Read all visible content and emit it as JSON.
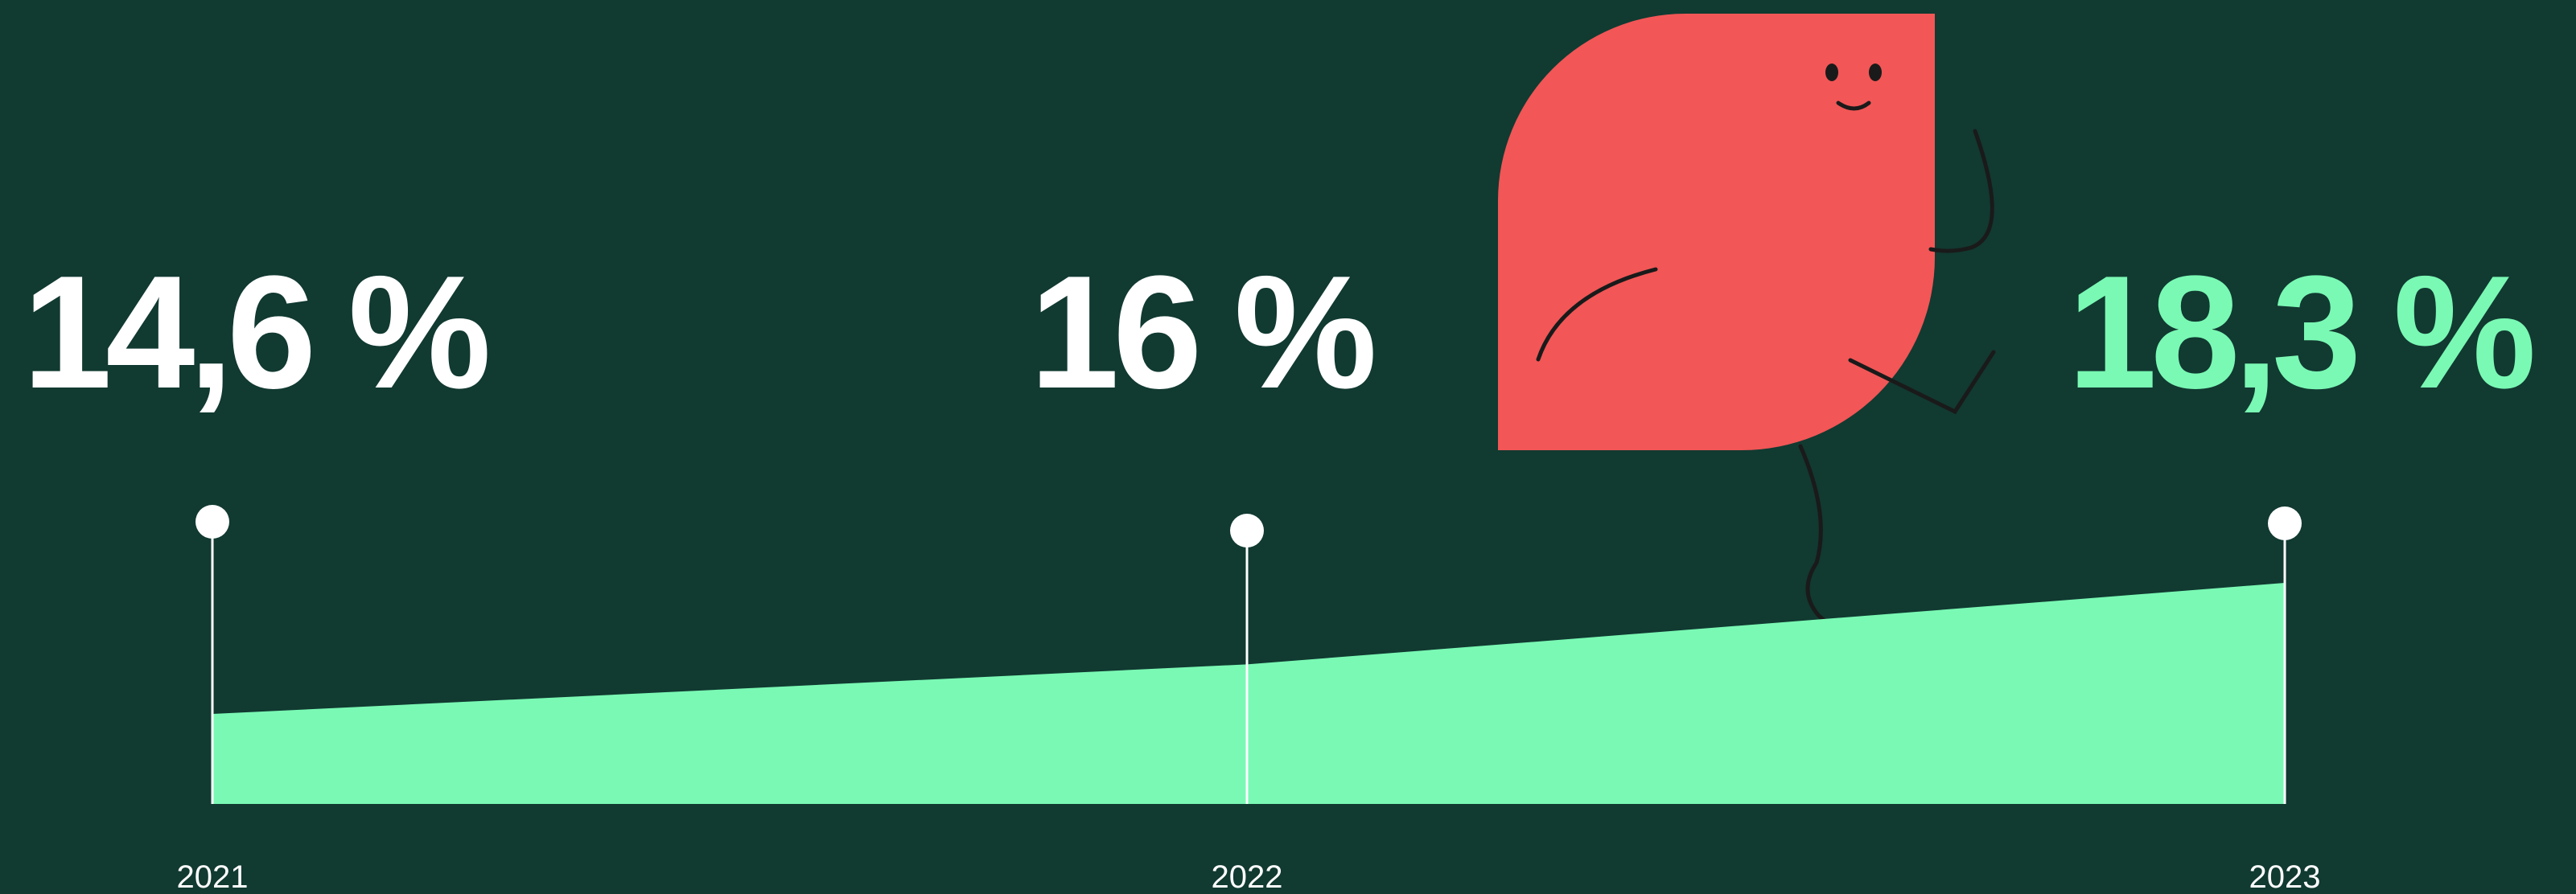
{
  "chart_data": {
    "type": "area",
    "categories": [
      "2021",
      "2022",
      "2023"
    ],
    "values": [
      14.6,
      16,
      18.3
    ],
    "value_labels": [
      "14,6 %",
      "16 %",
      "18,3 %"
    ],
    "value_label_colors": [
      "#ffffff",
      "#ffffff",
      "#7af9b4"
    ],
    "color": "#7af9b4"
  }
}
